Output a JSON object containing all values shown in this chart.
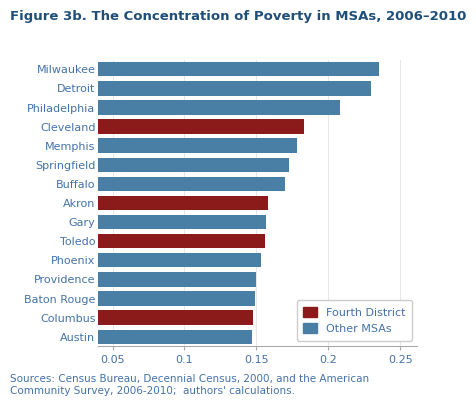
{
  "title": "Figure 3b. The Concentration of Poverty in MSAs, 2006–2010",
  "cities": [
    "Milwaukee",
    "Detroit",
    "Philadelphia",
    "Cleveland",
    "Memphis",
    "Springfield",
    "Buffalo",
    "Akron",
    "Gary",
    "Toledo",
    "Phoenix",
    "Providence",
    "Baton Rouge",
    "Columbus",
    "Austin"
  ],
  "values": [
    0.235,
    0.23,
    0.208,
    0.183,
    0.178,
    0.173,
    0.17,
    0.158,
    0.157,
    0.156,
    0.153,
    0.15,
    0.149,
    0.148,
    0.147
  ],
  "is_fourth_district": [
    false,
    false,
    false,
    true,
    false,
    false,
    false,
    true,
    false,
    true,
    false,
    false,
    false,
    true,
    false
  ],
  "color_fourth": "#8B1A1A",
  "color_other": "#4A7FA5",
  "title_color": "#1F4E79",
  "text_color": "#4472A8",
  "xlim": [
    0.04,
    0.262
  ],
  "xticks": [
    0.05,
    0.1,
    0.15,
    0.2,
    0.25
  ],
  "xtick_labels": [
    "0.05",
    "0.1",
    "0.15",
    "0.2",
    "0.25"
  ],
  "bar_height": 0.75,
  "legend_fourth": "Fourth District",
  "legend_other": "Other MSAs",
  "source_text": "Sources: Census Bureau, Decennial Census, 2000, and the American\nCommunity Survey, 2006-2010;  authors' calculations.",
  "background_color": "#FFFFFF",
  "title_fontsize": 9.5,
  "tick_fontsize": 8,
  "label_fontsize": 8,
  "source_fontsize": 7.5
}
